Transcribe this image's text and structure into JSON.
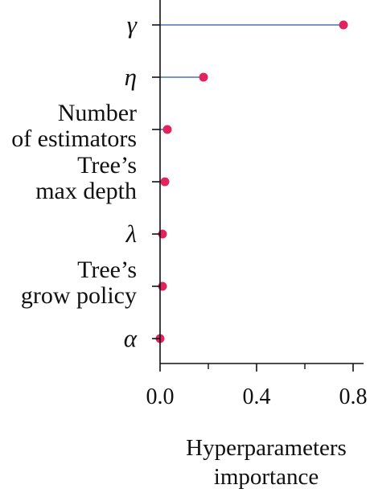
{
  "chart_data": {
    "type": "lollipop",
    "orientation": "horizontal",
    "categories": [
      [
        "γ"
      ],
      [
        "η"
      ],
      [
        "Number",
        "of estimators"
      ],
      [
        "Tree’s",
        "max depth"
      ],
      [
        "λ"
      ],
      [
        "Tree’s",
        "grow policy"
      ],
      [
        "α"
      ]
    ],
    "values": [
      0.76,
      0.18,
      0.03,
      0.02,
      0.01,
      0.01,
      0.0
    ],
    "xlim": [
      0.0,
      0.85
    ],
    "xticks": [
      0.0,
      0.4,
      0.8
    ],
    "xtick_labels": [
      "0.0",
      "0.4",
      "0.8"
    ],
    "xminor_ticks": [
      0.2,
      0.6
    ],
    "xlabel": [
      "Hyperparameters",
      "importance"
    ],
    "ylabel": "",
    "title": "",
    "grid": false,
    "legend": false,
    "colors": {
      "stem": "#4a72b8",
      "marker": "#e0245e",
      "axis": "#111111"
    }
  }
}
